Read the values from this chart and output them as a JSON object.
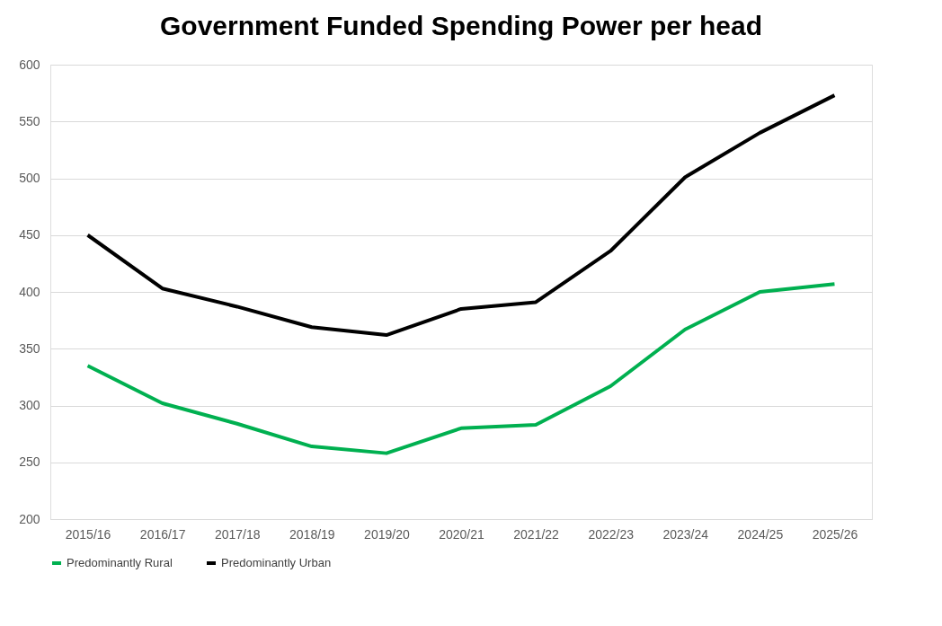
{
  "chart_data": {
    "type": "line",
    "title": "Government Funded Spending Power per head",
    "categories": [
      "2015/16",
      "2016/17",
      "2017/18",
      "2018/19",
      "2019/20",
      "2020/21",
      "2021/22",
      "2022/23",
      "2023/24",
      "2024/25",
      "2025/26"
    ],
    "series": [
      {
        "name": "Predominantly Rural",
        "color": "#00b050",
        "values": [
          335,
          302,
          284,
          264,
          258,
          280,
          283,
          317,
          367,
          400,
          407
        ]
      },
      {
        "name": "Predominantly Urban",
        "color": "#000000",
        "values": [
          450,
          403,
          387,
          369,
          362,
          385,
          391,
          436,
          501,
          540,
          573
        ]
      }
    ],
    "ylim": [
      200,
      600
    ],
    "yticks": [
      200,
      250,
      300,
      350,
      400,
      450,
      500,
      550,
      600
    ],
    "grid": "y",
    "legend": "bottom",
    "marker": "none",
    "line_style": "solid"
  }
}
